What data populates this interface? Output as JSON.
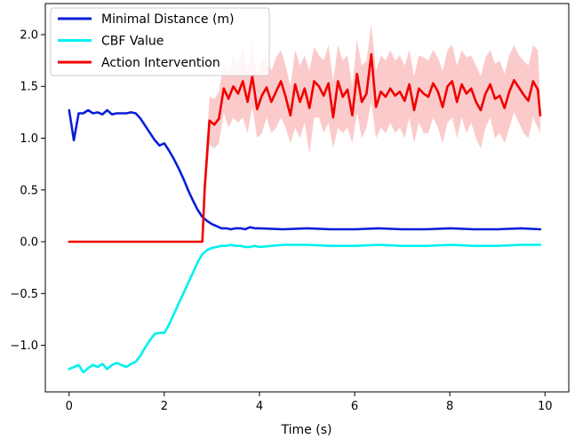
{
  "chart_data": {
    "type": "line",
    "title": "",
    "xlabel": "Time (s)",
    "ylabel": "",
    "xlim": [
      -0.5,
      10.5
    ],
    "ylim": [
      -1.45,
      2.3
    ],
    "xticks": [
      0,
      2,
      4,
      6,
      8,
      10
    ],
    "yticks": [
      -1.0,
      -0.5,
      0.0,
      0.5,
      1.0,
      1.5,
      2.0
    ],
    "xtick_labels": [
      "0",
      "2",
      "4",
      "6",
      "8",
      "10"
    ],
    "ytick_labels": [
      "−1.0",
      "−0.5",
      "0.0",
      "0.5",
      "1.0",
      "1.5",
      "2.0"
    ],
    "grid": false,
    "legend_position": "top-left",
    "series": [
      {
        "name": "Minimal Distance (m)",
        "color": "#0b1fd8",
        "x": [
          0,
          0.1,
          0.2,
          0.3,
          0.4,
          0.5,
          0.6,
          0.7,
          0.8,
          0.9,
          1.0,
          1.1,
          1.2,
          1.3,
          1.4,
          1.5,
          1.6,
          1.7,
          1.8,
          1.9,
          2.0,
          2.1,
          2.2,
          2.3,
          2.4,
          2.5,
          2.6,
          2.7,
          2.8,
          2.9,
          3.0,
          3.1,
          3.2,
          3.3,
          3.4,
          3.5,
          3.6,
          3.7,
          3.8,
          3.9,
          4.0,
          4.5,
          5.0,
          5.5,
          6.0,
          6.5,
          7.0,
          7.5,
          8.0,
          8.5,
          9.0,
          9.5,
          9.9
        ],
        "values": [
          1.27,
          0.98,
          1.24,
          1.24,
          1.27,
          1.24,
          1.25,
          1.23,
          1.27,
          1.23,
          1.24,
          1.24,
          1.24,
          1.25,
          1.24,
          1.19,
          1.12,
          1.05,
          0.98,
          0.93,
          0.95,
          0.88,
          0.8,
          0.71,
          0.61,
          0.5,
          0.4,
          0.31,
          0.24,
          0.2,
          0.17,
          0.15,
          0.13,
          0.13,
          0.12,
          0.13,
          0.13,
          0.12,
          0.14,
          0.13,
          0.13,
          0.12,
          0.13,
          0.12,
          0.12,
          0.13,
          0.12,
          0.12,
          0.13,
          0.12,
          0.12,
          0.13,
          0.12
        ]
      },
      {
        "name": "CBF Value",
        "color": "#00f0f0",
        "x": [
          0,
          0.1,
          0.2,
          0.3,
          0.4,
          0.5,
          0.6,
          0.7,
          0.8,
          0.9,
          1.0,
          1.1,
          1.2,
          1.3,
          1.4,
          1.5,
          1.6,
          1.7,
          1.8,
          1.9,
          2.0,
          2.1,
          2.2,
          2.3,
          2.4,
          2.5,
          2.6,
          2.7,
          2.8,
          2.9,
          3.0,
          3.1,
          3.2,
          3.3,
          3.4,
          3.5,
          3.6,
          3.7,
          3.8,
          3.9,
          4.0,
          4.5,
          5.0,
          5.5,
          6.0,
          6.5,
          7.0,
          7.5,
          8.0,
          8.5,
          9.0,
          9.5,
          9.9
        ],
        "values": [
          -1.23,
          -1.21,
          -1.19,
          -1.26,
          -1.22,
          -1.19,
          -1.21,
          -1.18,
          -1.23,
          -1.19,
          -1.17,
          -1.19,
          -1.21,
          -1.18,
          -1.16,
          -1.1,
          -1.02,
          -0.95,
          -0.89,
          -0.88,
          -0.88,
          -0.8,
          -0.7,
          -0.6,
          -0.5,
          -0.4,
          -0.3,
          -0.2,
          -0.12,
          -0.08,
          -0.06,
          -0.05,
          -0.04,
          -0.04,
          -0.03,
          -0.04,
          -0.04,
          -0.05,
          -0.05,
          -0.04,
          -0.05,
          -0.03,
          -0.03,
          -0.04,
          -0.04,
          -0.03,
          -0.04,
          -0.04,
          -0.03,
          -0.04,
          -0.04,
          -0.03,
          -0.03
        ]
      },
      {
        "name": "Action Intervention",
        "color": "#f00000",
        "band_color": "#f7a0a0",
        "x": [
          0,
          2.8,
          2.85,
          2.95,
          3.05,
          3.15,
          3.25,
          3.35,
          3.45,
          3.55,
          3.65,
          3.75,
          3.85,
          3.95,
          4.05,
          4.15,
          4.25,
          4.35,
          4.45,
          4.55,
          4.65,
          4.75,
          4.85,
          4.95,
          5.05,
          5.15,
          5.25,
          5.35,
          5.45,
          5.55,
          5.65,
          5.75,
          5.85,
          5.95,
          6.05,
          6.15,
          6.25,
          6.35,
          6.45,
          6.55,
          6.65,
          6.75,
          6.85,
          6.95,
          7.05,
          7.15,
          7.25,
          7.35,
          7.45,
          7.55,
          7.65,
          7.75,
          7.85,
          7.95,
          8.05,
          8.15,
          8.25,
          8.35,
          8.45,
          8.55,
          8.65,
          8.75,
          8.85,
          8.95,
          9.05,
          9.15,
          9.25,
          9.35,
          9.45,
          9.55,
          9.65,
          9.75,
          9.85,
          9.9
        ],
        "values": [
          0.0,
          0.0,
          0.53,
          1.17,
          1.13,
          1.19,
          1.48,
          1.38,
          1.5,
          1.43,
          1.55,
          1.35,
          1.6,
          1.28,
          1.41,
          1.49,
          1.35,
          1.45,
          1.55,
          1.4,
          1.22,
          1.52,
          1.35,
          1.48,
          1.29,
          1.55,
          1.5,
          1.41,
          1.53,
          1.2,
          1.55,
          1.4,
          1.47,
          1.22,
          1.62,
          1.35,
          1.43,
          1.81,
          1.3,
          1.45,
          1.4,
          1.48,
          1.41,
          1.45,
          1.36,
          1.52,
          1.27,
          1.48,
          1.43,
          1.4,
          1.53,
          1.45,
          1.3,
          1.5,
          1.55,
          1.35,
          1.52,
          1.43,
          1.48,
          1.35,
          1.27,
          1.43,
          1.52,
          1.38,
          1.41,
          1.29,
          1.45,
          1.56,
          1.49,
          1.42,
          1.36,
          1.55,
          1.47,
          1.22
        ],
        "band_lower": [
          0.0,
          0.0,
          0.35,
          0.94,
          0.9,
          0.95,
          1.25,
          1.1,
          1.2,
          1.15,
          1.2,
          1.05,
          1.3,
          1.0,
          1.05,
          1.2,
          1.05,
          1.1,
          1.2,
          1.1,
          0.95,
          1.1,
          1.0,
          1.15,
          0.85,
          1.2,
          1.2,
          1.05,
          1.15,
          0.9,
          1.1,
          1.05,
          1.1,
          0.95,
          1.25,
          1.0,
          1.1,
          1.35,
          1.0,
          1.1,
          1.05,
          1.15,
          1.05,
          1.1,
          1.0,
          1.2,
          0.95,
          1.15,
          1.05,
          1.05,
          1.2,
          1.1,
          0.95,
          1.15,
          1.2,
          1.0,
          1.2,
          1.05,
          1.15,
          1.0,
          0.9,
          1.1,
          1.2,
          1.0,
          1.05,
          0.95,
          1.1,
          1.25,
          1.15,
          1.05,
          1.0,
          1.2,
          1.1,
          1.05
        ],
        "band_upper": [
          0.0,
          0.0,
          0.7,
          1.4,
          1.38,
          1.45,
          1.75,
          1.65,
          1.8,
          1.7,
          1.9,
          1.65,
          1.95,
          1.6,
          1.75,
          1.8,
          1.65,
          1.78,
          1.85,
          1.7,
          1.5,
          1.85,
          1.7,
          1.8,
          1.65,
          1.88,
          1.8,
          1.75,
          1.9,
          1.55,
          1.9,
          1.75,
          1.8,
          1.5,
          1.95,
          1.7,
          1.75,
          2.1,
          1.65,
          1.8,
          1.75,
          1.85,
          1.75,
          1.8,
          1.7,
          1.85,
          1.6,
          1.8,
          1.78,
          1.75,
          1.85,
          1.78,
          1.65,
          1.85,
          1.9,
          1.7,
          1.85,
          1.78,
          1.8,
          1.7,
          1.6,
          1.78,
          1.85,
          1.72,
          1.75,
          1.62,
          1.8,
          1.9,
          1.8,
          1.75,
          1.7,
          1.9,
          1.85,
          1.4
        ]
      }
    ]
  }
}
